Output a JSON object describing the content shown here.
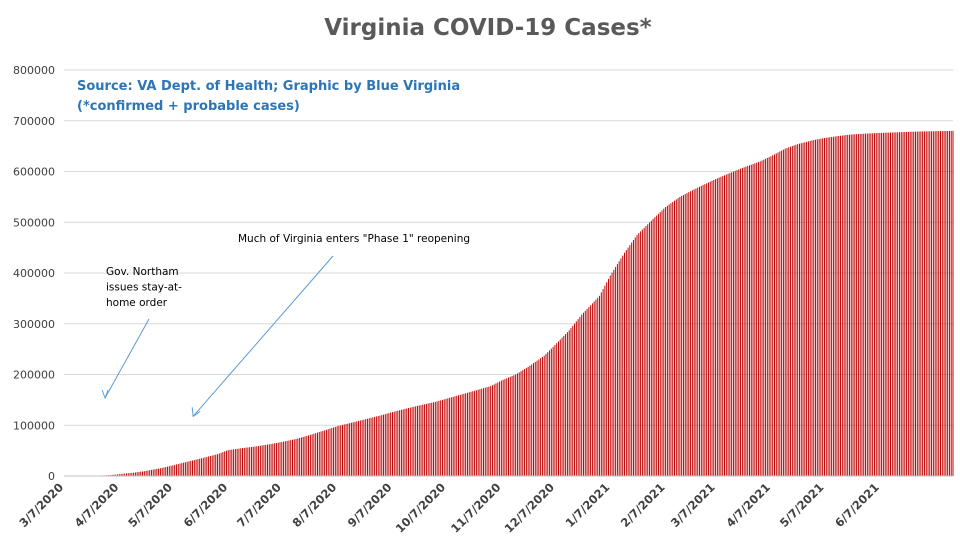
{
  "chart_data": {
    "type": "bar",
    "title": "Virginia COVID-19 Cases*",
    "source": "Source: VA Dept. of Health; Graphic by Blue Virginia",
    "note": "(*confirmed + probable cases)",
    "xlabel": "",
    "ylabel": "",
    "ylim": [
      0,
      800000
    ],
    "yticks": [
      0,
      100000,
      200000,
      300000,
      400000,
      500000,
      600000,
      700000,
      800000
    ],
    "xlim": [
      "2020-03-07",
      "2021-07-18"
    ],
    "xticks": [
      "3/7/2020",
      "4/7/2020",
      "5/7/2020",
      "6/7/2020",
      "7/7/2020",
      "8/7/2020",
      "9/7/2020",
      "10/7/2020",
      "11/7/2020",
      "12/7/2020",
      "1/7/2021",
      "2/7/2021",
      "3/7/2021",
      "4/7/2021",
      "5/7/2021",
      "6/7/2021"
    ],
    "grid": true,
    "bar_color": "#c00000",
    "series": [
      {
        "points": [
          [
            "2020-03-07",
            0
          ],
          [
            "2020-03-20",
            100
          ],
          [
            "2020-04-01",
            1500
          ],
          [
            "2020-04-07",
            3600
          ],
          [
            "2020-04-15",
            6500
          ],
          [
            "2020-04-22",
            10000
          ],
          [
            "2020-05-01",
            16000
          ],
          [
            "2020-05-07",
            21000
          ],
          [
            "2020-05-15",
            28000
          ],
          [
            "2020-05-22",
            34000
          ],
          [
            "2020-06-01",
            43000
          ],
          [
            "2020-06-07",
            51000
          ],
          [
            "2020-06-15",
            55000
          ],
          [
            "2020-06-22",
            58000
          ],
          [
            "2020-07-01",
            63000
          ],
          [
            "2020-07-07",
            67000
          ],
          [
            "2020-07-15",
            73000
          ],
          [
            "2020-07-22",
            80000
          ],
          [
            "2020-08-01",
            91000
          ],
          [
            "2020-08-07",
            98000
          ],
          [
            "2020-08-15",
            105000
          ],
          [
            "2020-08-22",
            111000
          ],
          [
            "2020-09-01",
            120000
          ],
          [
            "2020-09-07",
            126000
          ],
          [
            "2020-09-15",
            133000
          ],
          [
            "2020-09-22",
            139000
          ],
          [
            "2020-10-01",
            146000
          ],
          [
            "2020-10-07",
            152000
          ],
          [
            "2020-10-15",
            160000
          ],
          [
            "2020-10-22",
            167000
          ],
          [
            "2020-11-01",
            177000
          ],
          [
            "2020-11-07",
            188000
          ],
          [
            "2020-11-15",
            200000
          ],
          [
            "2020-11-22",
            215000
          ],
          [
            "2020-12-01",
            237000
          ],
          [
            "2020-12-07",
            258000
          ],
          [
            "2020-12-15",
            287000
          ],
          [
            "2020-12-22",
            318000
          ],
          [
            "2021-01-01",
            355000
          ],
          [
            "2021-01-07",
            395000
          ],
          [
            "2021-01-15",
            440000
          ],
          [
            "2021-01-22",
            475000
          ],
          [
            "2021-02-01",
            510000
          ],
          [
            "2021-02-07",
            530000
          ],
          [
            "2021-02-15",
            550000
          ],
          [
            "2021-02-22",
            563000
          ],
          [
            "2021-03-01",
            575000
          ],
          [
            "2021-03-07",
            585000
          ],
          [
            "2021-03-15",
            597000
          ],
          [
            "2021-03-22",
            607000
          ],
          [
            "2021-04-01",
            620000
          ],
          [
            "2021-04-07",
            630000
          ],
          [
            "2021-04-15",
            645000
          ],
          [
            "2021-04-22",
            654000
          ],
          [
            "2021-05-01",
            662000
          ],
          [
            "2021-05-07",
            666000
          ],
          [
            "2021-05-15",
            670000
          ],
          [
            "2021-05-22",
            673000
          ],
          [
            "2021-06-01",
            675000
          ],
          [
            "2021-06-07",
            676000
          ],
          [
            "2021-06-15",
            677000
          ],
          [
            "2021-06-22",
            678000
          ],
          [
            "2021-07-01",
            679000
          ],
          [
            "2021-07-18",
            680000
          ]
        ]
      }
    ],
    "annotations": [
      {
        "lines": [
          "Gov. Northam",
          "issues stay-at-",
          "home order"
        ],
        "date": "2020-03-30",
        "value": 0
      },
      {
        "lines": [
          "Much of Virginia enters \"Phase 1\" reopening"
        ],
        "date": "2020-05-15",
        "value": 220000
      }
    ]
  }
}
